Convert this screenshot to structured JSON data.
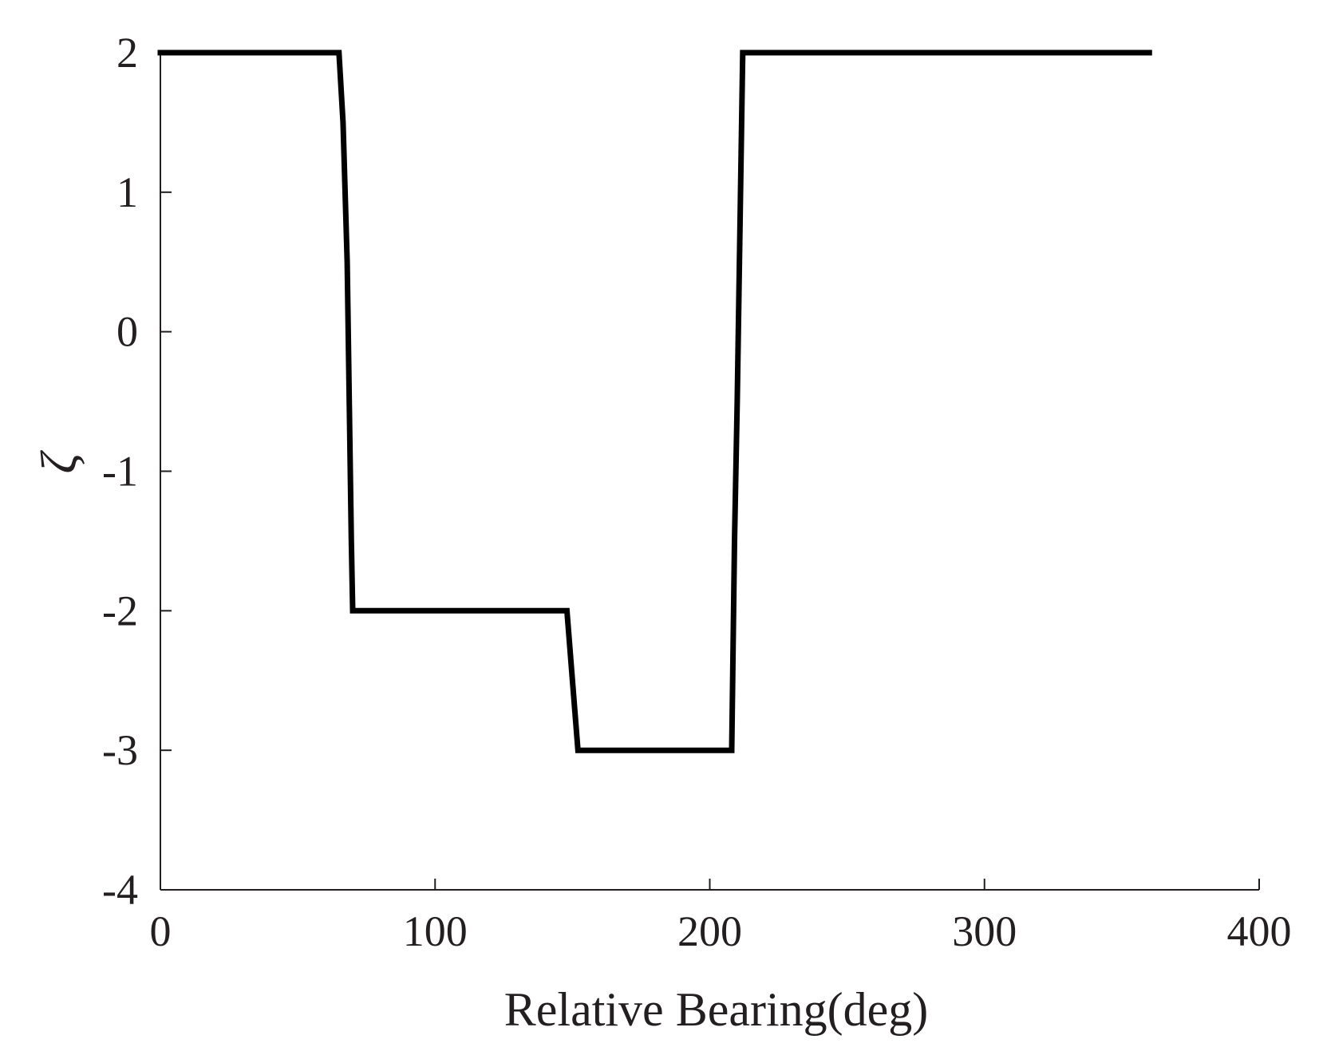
{
  "chart_data": {
    "type": "line",
    "title": "",
    "xlabel": "Relative Bearing(deg)",
    "ylabel": "ζ",
    "xlim": [
      0,
      400
    ],
    "ylim": [
      -4,
      2
    ],
    "xticks": [
      0,
      100,
      200,
      300,
      400
    ],
    "yticks": [
      -4,
      -3,
      -2,
      -1,
      0,
      1,
      2
    ],
    "grid": false,
    "legend": "none",
    "series": [
      {
        "color": "#000000",
        "x": [
          0,
          65,
          66.5,
          68,
          69.5,
          70,
          148,
          150,
          152,
          208,
          209,
          210,
          212,
          360
        ],
        "y": [
          2,
          2,
          1.5,
          0.5,
          -1.5,
          -2,
          -2,
          -2.5,
          -3,
          -3,
          -1.5,
          -0.5,
          2,
          2
        ]
      }
    ]
  }
}
